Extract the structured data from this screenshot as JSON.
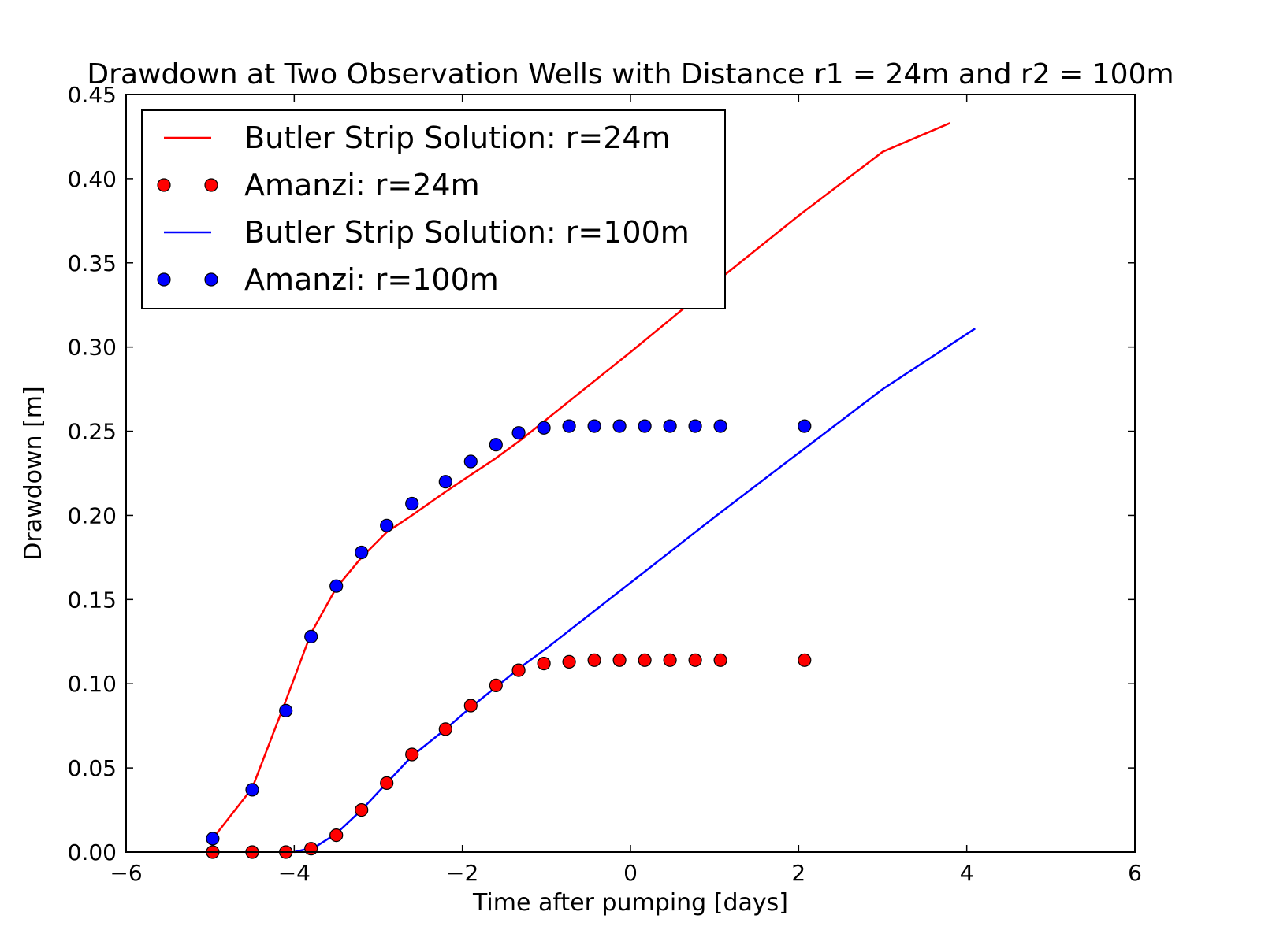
{
  "chart_data": {
    "type": "line",
    "title": "Drawdown at Two Observation Wells with Distance r1  = 24m and r2 = 100m",
    "xlabel": "Time after pumping [days]",
    "ylabel": "Drawdown [m]",
    "xlim": [
      -6,
      6
    ],
    "ylim": [
      0,
      0.45
    ],
    "xticks": [
      -6,
      -4,
      -2,
      0,
      2,
      4,
      6
    ],
    "xtick_labels": [
      "−6",
      "−4",
      "−2",
      "0",
      "2",
      "4",
      "6"
    ],
    "yticks": [
      0,
      0.05,
      0.1,
      0.15,
      0.2,
      0.25,
      0.3,
      0.35,
      0.4,
      0.45
    ],
    "ytick_labels": [
      "0.00",
      "0.05",
      "0.10",
      "0.15",
      "0.20",
      "0.25",
      "0.30",
      "0.35",
      "0.40",
      "0.45"
    ],
    "grid": false,
    "legend_position": "top-left",
    "series": [
      {
        "name": "Butler Strip Solution: r=24m",
        "style": "line",
        "color": "#ff0000",
        "x": [
          -4.97,
          -4.5,
          -4.1,
          -3.8,
          -3.5,
          -3.2,
          -2.9,
          -2.6,
          -2.2,
          -1.9,
          -1.6,
          -1.3,
          -1.0,
          0.0,
          1.0,
          2.0,
          3.0,
          3.8
        ],
        "y": [
          0.008,
          0.038,
          0.09,
          0.13,
          0.157,
          0.175,
          0.19,
          0.2,
          0.214,
          0.224,
          0.234,
          0.245,
          0.257,
          0.297,
          0.338,
          0.378,
          0.416,
          0.433
        ]
      },
      {
        "name": "Amanzi: r=24m",
        "style": "markers",
        "color": "#ff0000",
        "x": [
          -4.97,
          -4.5,
          -4.1,
          -3.8,
          -3.5,
          -3.2,
          -2.9,
          -2.6,
          -2.2,
          -1.9,
          -1.6,
          -1.33,
          -1.03,
          -0.73,
          -0.43,
          -0.13,
          0.17,
          0.47,
          0.77,
          1.07,
          2.07
        ],
        "y": [
          0.0,
          0.0,
          0.0,
          0.002,
          0.01,
          0.025,
          0.041,
          0.058,
          0.073,
          0.087,
          0.099,
          0.108,
          0.112,
          0.113,
          0.114,
          0.114,
          0.114,
          0.114,
          0.114,
          0.114,
          0.114
        ]
      },
      {
        "name": "Butler Strip Solution: r=100m",
        "style": "line",
        "color": "#0000ff",
        "x": [
          -4.0,
          -3.75,
          -3.5,
          -3.2,
          -2.9,
          -2.6,
          -2.2,
          -1.9,
          -1.6,
          -1.3,
          -1.0,
          0.0,
          1.0,
          2.0,
          3.0,
          4.1
        ],
        "y": [
          0.0,
          0.003,
          0.011,
          0.025,
          0.041,
          0.057,
          0.073,
          0.086,
          0.098,
          0.11,
          0.121,
          0.16,
          0.199,
          0.237,
          0.275,
          0.311
        ]
      },
      {
        "name": "Amanzi: r=100m",
        "style": "markers",
        "color": "#0000ff",
        "x": [
          -4.97,
          -4.5,
          -4.1,
          -3.8,
          -3.5,
          -3.2,
          -2.9,
          -2.6,
          -2.2,
          -1.9,
          -1.6,
          -1.33,
          -1.03,
          -0.73,
          -0.43,
          -0.13,
          0.17,
          0.47,
          0.77,
          1.07,
          2.07
        ],
        "y": [
          0.008,
          0.037,
          0.084,
          0.128,
          0.158,
          0.178,
          0.194,
          0.207,
          0.22,
          0.232,
          0.242,
          0.249,
          0.252,
          0.253,
          0.253,
          0.253,
          0.253,
          0.253,
          0.253,
          0.253,
          0.253
        ]
      }
    ]
  }
}
